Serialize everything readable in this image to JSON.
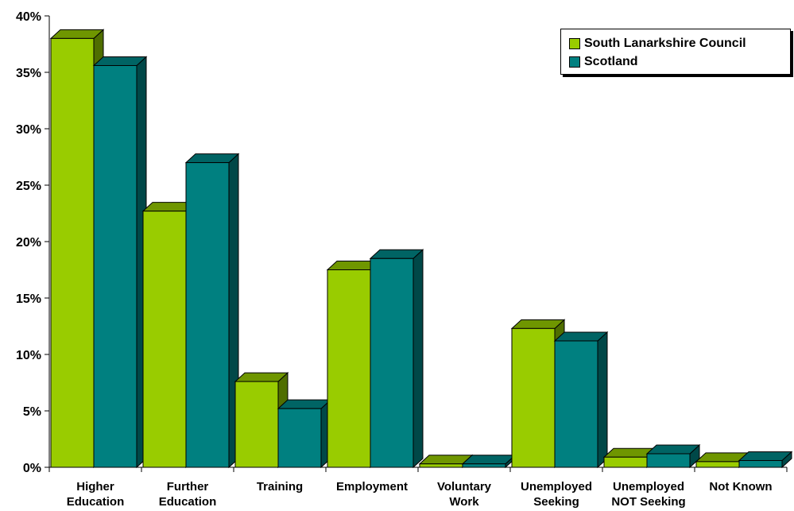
{
  "chart_data": {
    "type": "bar",
    "title": "",
    "xlabel": "",
    "ylabel": "",
    "ylim": [
      0,
      40
    ],
    "y_ticks": [
      "0%",
      "5%",
      "10%",
      "15%",
      "20%",
      "25%",
      "30%",
      "35%",
      "40%"
    ],
    "categories": [
      [
        "Higher",
        "Education"
      ],
      [
        "Further",
        "Education"
      ],
      [
        "Training"
      ],
      [
        "Employment"
      ],
      [
        "Voluntary",
        "Work"
      ],
      [
        "Unemployed",
        "Seeking"
      ],
      [
        "Unemployed",
        "NOT Seeking"
      ],
      [
        "Not Known"
      ]
    ],
    "series": [
      {
        "name": "South Lanarkshire Council",
        "color": "#99cc00",
        "top_color": "#6f9600",
        "side_color": "#4f6e00",
        "values": [
          38.0,
          22.7,
          7.6,
          17.5,
          0.3,
          12.3,
          0.9,
          0.5
        ]
      },
      {
        "name": "Scotland",
        "color": "#008080",
        "top_color": "#006464",
        "side_color": "#004848",
        "values": [
          35.6,
          27.0,
          5.2,
          18.5,
          0.3,
          11.2,
          1.2,
          0.6
        ]
      }
    ],
    "legend_position": "top-right",
    "grid": false
  }
}
